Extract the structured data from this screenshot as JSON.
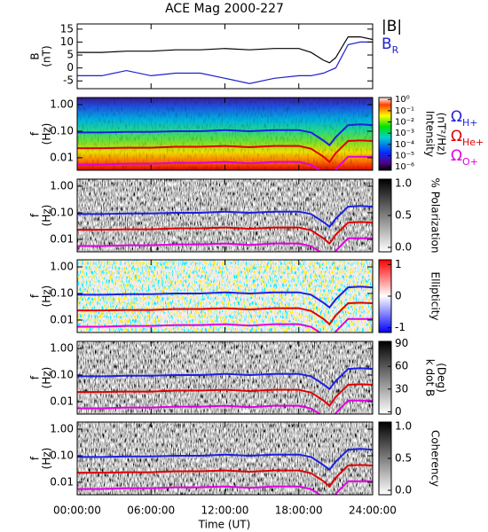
{
  "time_axis": {
    "label": "Time (UT)",
    "xlim": [
      0,
      24
    ],
    "xticks": [
      {
        "value": 0,
        "label": "00:00:00"
      },
      {
        "value": 6,
        "label": "06:00:00"
      },
      {
        "value": 12,
        "label": "12:00:00"
      },
      {
        "value": 18,
        "label": "18:00:00"
      },
      {
        "value": 24,
        "label": "24:00:00"
      }
    ]
  },
  "chart_data": [
    {
      "type": "line",
      "title": "ACE Mag 2000-227",
      "ylabel": [
        "B",
        "(nT)"
      ],
      "ylim": [
        -8,
        17
      ],
      "yticks": [
        -5,
        0,
        5,
        10,
        15
      ],
      "x": [
        0,
        2,
        4,
        6,
        8,
        10,
        12,
        14,
        16,
        18,
        19,
        20,
        20.5,
        21,
        22,
        23,
        24
      ],
      "series": [
        {
          "name": "|B|",
          "color": "#000000",
          "values": [
            6,
            6,
            6.5,
            6.5,
            7,
            7,
            7.5,
            7,
            7.5,
            7.5,
            6,
            3,
            2,
            4,
            12,
            12,
            11
          ]
        },
        {
          "name": "BR",
          "color": "#1f1fd0",
          "values": [
            -3,
            -3,
            -1,
            -3,
            -2,
            -2,
            -4,
            -6,
            -4,
            -3,
            -3,
            -2,
            -1,
            0,
            9,
            10,
            10
          ]
        }
      ]
    },
    {
      "type": "spectrogram",
      "colormap": "rainbow",
      "ylabel": [
        "f",
        "(Hz)"
      ],
      "log_y": true,
      "ylim": [
        0.0034,
        1.85
      ],
      "yticks": [
        {
          "value": 1,
          "label": "1.00"
        },
        {
          "value": 0.1,
          "label": "0.10"
        },
        {
          "value": 0.01,
          "label": "0.01"
        }
      ],
      "colorbar": {
        "label": [
          "Intensity",
          "(nT²/Hz)"
        ],
        "log": true,
        "clim": [
          5e-07,
          1.5
        ],
        "ticks": [
          {
            "value": 1,
            "label": "10⁰"
          },
          {
            "value": 0.1,
            "label": "10⁻¹"
          },
          {
            "value": 0.01,
            "label": "10⁻²"
          },
          {
            "value": 0.001,
            "label": "10⁻³"
          },
          {
            "value": 0.0001,
            "label": "10⁻⁴"
          },
          {
            "value": 1e-05,
            "label": "10⁻⁵"
          },
          {
            "value": 1e-06,
            "label": "10⁻⁶"
          }
        ]
      },
      "legend": true,
      "x": [
        0,
        2,
        4,
        6,
        8,
        10,
        12,
        14,
        16,
        18,
        19,
        20,
        20.5,
        21,
        22,
        23,
        24
      ],
      "series": [
        {
          "name": "ΩH+",
          "color": "#1f1fe0",
          "values": [
            0.09,
            0.09,
            0.095,
            0.095,
            0.1,
            0.1,
            0.11,
            0.1,
            0.11,
            0.11,
            0.09,
            0.045,
            0.03,
            0.06,
            0.17,
            0.18,
            0.17
          ]
        },
        {
          "name": "ΩHe+",
          "color": "#e00000",
          "values": [
            0.023,
            0.023,
            0.024,
            0.024,
            0.026,
            0.026,
            0.028,
            0.025,
            0.028,
            0.028,
            0.022,
            0.011,
            0.007,
            0.015,
            0.043,
            0.045,
            0.043
          ]
        },
        {
          "name": "ΩO+",
          "color": "#e000e0",
          "values": [
            0.0056,
            0.0056,
            0.006,
            0.006,
            0.0065,
            0.0065,
            0.007,
            0.0062,
            0.007,
            0.007,
            0.0055,
            0.0028,
            0.0019,
            0.0037,
            0.011,
            0.011,
            0.011
          ]
        }
      ]
    },
    {
      "type": "spectrogram",
      "colormap": "gray",
      "ylabel": [
        "f",
        "(Hz)"
      ],
      "log_y": true,
      "ylim": [
        0.0034,
        1.85
      ],
      "yticks": [
        {
          "value": 1,
          "label": "1.00"
        },
        {
          "value": 0.1,
          "label": "0.10"
        },
        {
          "value": 0.01,
          "label": "0.01"
        }
      ],
      "colorbar": {
        "label": [
          "% Polarization"
        ],
        "log": false,
        "clim": [
          -0.07,
          1.07
        ],
        "ticks": [
          {
            "value": 1,
            "label": "1.0"
          },
          {
            "value": 0.5,
            "label": "0.5"
          },
          {
            "value": 0,
            "label": "0.0"
          }
        ]
      },
      "x": [
        0,
        2,
        4,
        6,
        8,
        10,
        12,
        14,
        16,
        18,
        19,
        20,
        20.5,
        21,
        22,
        23,
        24
      ],
      "series": [
        {
          "name": "ΩH+",
          "color": "#1f1fe0",
          "values": [
            0.09,
            0.09,
            0.095,
            0.095,
            0.1,
            0.1,
            0.11,
            0.1,
            0.11,
            0.11,
            0.09,
            0.045,
            0.03,
            0.06,
            0.17,
            0.18,
            0.17
          ]
        },
        {
          "name": "ΩHe+",
          "color": "#e00000",
          "values": [
            0.023,
            0.023,
            0.024,
            0.024,
            0.026,
            0.026,
            0.028,
            0.025,
            0.028,
            0.028,
            0.022,
            0.011,
            0.007,
            0.015,
            0.043,
            0.045,
            0.043
          ]
        },
        {
          "name": "ΩO+",
          "color": "#e000e0",
          "values": [
            0.0056,
            0.0056,
            0.006,
            0.006,
            0.0065,
            0.0065,
            0.007,
            0.0062,
            0.007,
            0.007,
            0.0055,
            0.0028,
            0.0019,
            0.0037,
            0.011,
            0.011,
            0.011
          ]
        }
      ]
    },
    {
      "type": "spectrogram",
      "colormap": "bluered",
      "ylabel": [
        "f",
        "(Hz)"
      ],
      "log_y": true,
      "ylim": [
        0.0034,
        1.85
      ],
      "yticks": [
        {
          "value": 1,
          "label": "1.00"
        },
        {
          "value": 0.1,
          "label": "0.10"
        },
        {
          "value": 0.01,
          "label": "0.01"
        }
      ],
      "colorbar": {
        "label": [
          "Ellipticity"
        ],
        "log": false,
        "clim": [
          -1.15,
          1.15
        ],
        "ticks": [
          1,
          0,
          -1
        ]
      },
      "x": [
        0,
        2,
        4,
        6,
        8,
        10,
        12,
        14,
        16,
        18,
        19,
        20,
        20.5,
        21,
        22,
        23,
        24
      ],
      "series": [
        {
          "name": "ΩH+",
          "color": "#1f1fe0",
          "values": [
            0.09,
            0.09,
            0.095,
            0.095,
            0.1,
            0.1,
            0.11,
            0.1,
            0.11,
            0.11,
            0.09,
            0.045,
            0.03,
            0.06,
            0.17,
            0.18,
            0.17
          ]
        },
        {
          "name": "ΩHe+",
          "color": "#e00000",
          "values": [
            0.023,
            0.023,
            0.024,
            0.024,
            0.026,
            0.026,
            0.028,
            0.025,
            0.028,
            0.028,
            0.022,
            0.011,
            0.007,
            0.015,
            0.043,
            0.045,
            0.043
          ]
        },
        {
          "name": "ΩO+",
          "color": "#e000e0",
          "values": [
            0.0056,
            0.0056,
            0.006,
            0.006,
            0.0065,
            0.0065,
            0.007,
            0.0062,
            0.007,
            0.007,
            0.0055,
            0.0028,
            0.0019,
            0.0037,
            0.011,
            0.011,
            0.011
          ]
        }
      ]
    },
    {
      "type": "spectrogram",
      "colormap": "gray",
      "ylabel": [
        "f",
        "(Hz)"
      ],
      "log_y": true,
      "ylim": [
        0.0034,
        1.85
      ],
      "yticks": [
        {
          "value": 1,
          "label": "1.00"
        },
        {
          "value": 0.1,
          "label": "0.10"
        },
        {
          "value": 0.01,
          "label": "0.01"
        }
      ],
      "colorbar": {
        "label": [
          "k dot B",
          "(Deg)"
        ],
        "log": false,
        "clim": [
          -3,
          93
        ],
        "ticks": [
          90,
          60,
          30,
          0
        ]
      },
      "x": [
        0,
        2,
        4,
        6,
        8,
        10,
        12,
        14,
        16,
        18,
        19,
        20,
        20.5,
        21,
        22,
        23,
        24
      ],
      "series": [
        {
          "name": "ΩH+",
          "color": "#1f1fe0",
          "values": [
            0.09,
            0.09,
            0.095,
            0.095,
            0.1,
            0.1,
            0.11,
            0.1,
            0.11,
            0.11,
            0.09,
            0.045,
            0.03,
            0.06,
            0.17,
            0.18,
            0.17
          ]
        },
        {
          "name": "ΩHe+",
          "color": "#e00000",
          "values": [
            0.023,
            0.023,
            0.024,
            0.024,
            0.026,
            0.026,
            0.028,
            0.025,
            0.028,
            0.028,
            0.022,
            0.011,
            0.007,
            0.015,
            0.043,
            0.045,
            0.043
          ]
        },
        {
          "name": "ΩO+",
          "color": "#e000e0",
          "values": [
            0.0056,
            0.0056,
            0.006,
            0.006,
            0.0065,
            0.0065,
            0.007,
            0.0062,
            0.007,
            0.007,
            0.0055,
            0.0028,
            0.0019,
            0.0037,
            0.011,
            0.011,
            0.011
          ]
        }
      ]
    },
    {
      "type": "spectrogram",
      "colormap": "gray",
      "ylabel": [
        "f",
        "(Hz)"
      ],
      "log_y": true,
      "ylim": [
        0.0034,
        1.85
      ],
      "yticks": [
        {
          "value": 1,
          "label": "1.00"
        },
        {
          "value": 0.1,
          "label": "0.10"
        },
        {
          "value": 0.01,
          "label": "0.01"
        }
      ],
      "colorbar": {
        "label": [
          "Coherency"
        ],
        "log": false,
        "clim": [
          -0.07,
          1.07
        ],
        "ticks": [
          {
            "value": 1,
            "label": "1.0"
          },
          {
            "value": 0.5,
            "label": "0.5"
          },
          {
            "value": 0,
            "label": "0.0"
          }
        ]
      },
      "x": [
        0,
        2,
        4,
        6,
        8,
        10,
        12,
        14,
        16,
        18,
        19,
        20,
        20.5,
        21,
        22,
        23,
        24
      ],
      "series": [
        {
          "name": "ΩH+",
          "color": "#1f1fe0",
          "values": [
            0.09,
            0.09,
            0.095,
            0.095,
            0.1,
            0.1,
            0.11,
            0.1,
            0.11,
            0.11,
            0.09,
            0.045,
            0.03,
            0.06,
            0.17,
            0.18,
            0.17
          ]
        },
        {
          "name": "ΩHe+",
          "color": "#e00000",
          "values": [
            0.023,
            0.023,
            0.024,
            0.024,
            0.026,
            0.026,
            0.028,
            0.025,
            0.028,
            0.028,
            0.022,
            0.011,
            0.007,
            0.015,
            0.043,
            0.045,
            0.043
          ]
        },
        {
          "name": "ΩO+",
          "color": "#e000e0",
          "values": [
            0.0056,
            0.0056,
            0.006,
            0.006,
            0.0065,
            0.0065,
            0.007,
            0.0062,
            0.007,
            0.007,
            0.0055,
            0.0028,
            0.0019,
            0.0037,
            0.011,
            0.011,
            0.011
          ]
        }
      ]
    }
  ]
}
